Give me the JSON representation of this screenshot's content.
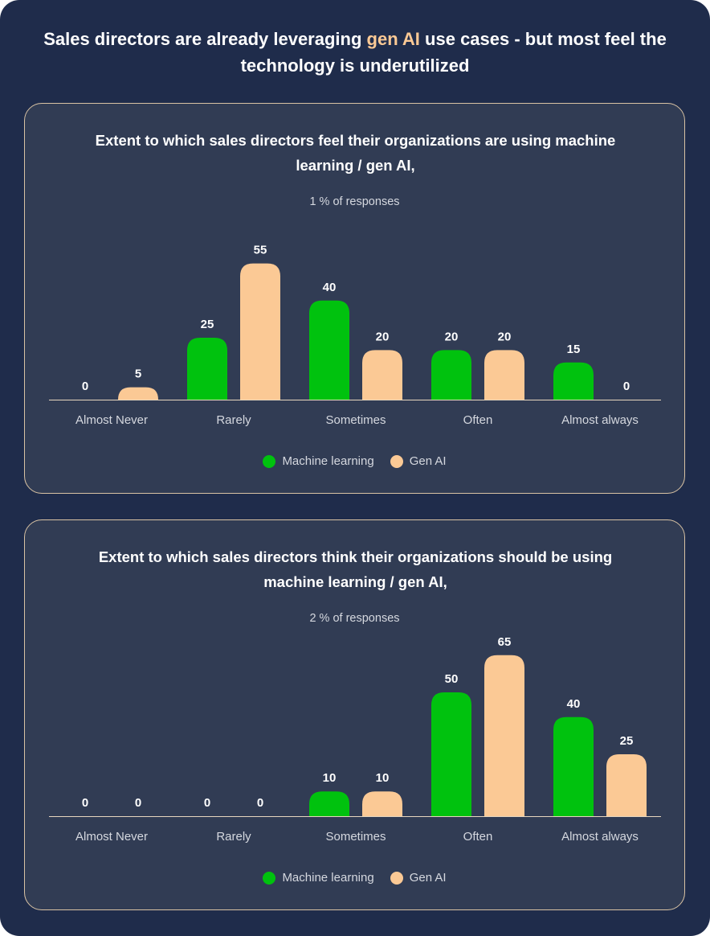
{
  "header": {
    "title_before": "Sales directors are already leveraging ",
    "title_highlight": "gen AI",
    "title_after": " use cases - but most feel the technology is underutilized"
  },
  "colors": {
    "background": "#1f2c4b",
    "card": "#313c54",
    "machine_learning": "#00c20e",
    "gen_ai": "#fbc995",
    "highlight": "#fbc995"
  },
  "chart_data": [
    {
      "type": "bar",
      "title": "Extent to which sales directors feel their organizations are using machine learning / gen AI,",
      "subtitle": "1 % of responses",
      "categories": [
        "Almost Never",
        "Rarely",
        "Sometimes",
        "Often",
        "Almost always"
      ],
      "series": [
        {
          "name": "Machine learning",
          "color": "#00c20e",
          "values": [
            0,
            25,
            40,
            20,
            15
          ]
        },
        {
          "name": "Gen AI",
          "color": "#fbc995",
          "values": [
            5,
            55,
            20,
            20,
            0
          ]
        }
      ],
      "ylim": [
        0,
        55
      ],
      "grid": false,
      "legend_position": "bottom-center"
    },
    {
      "type": "bar",
      "title": "Extent to which sales directors think their organizations should be using machine learning / gen AI,",
      "subtitle": "2 % of responses",
      "categories": [
        "Almost Never",
        "Rarely",
        "Sometimes",
        "Often",
        "Almost always"
      ],
      "series": [
        {
          "name": "Machine learning",
          "color": "#00c20e",
          "values": [
            0,
            0,
            10,
            50,
            40
          ]
        },
        {
          "name": "Gen AI",
          "color": "#fbc995",
          "values": [
            0,
            0,
            10,
            65,
            25
          ]
        }
      ],
      "ylim": [
        0,
        65
      ],
      "grid": false,
      "legend_position": "bottom-center"
    }
  ]
}
